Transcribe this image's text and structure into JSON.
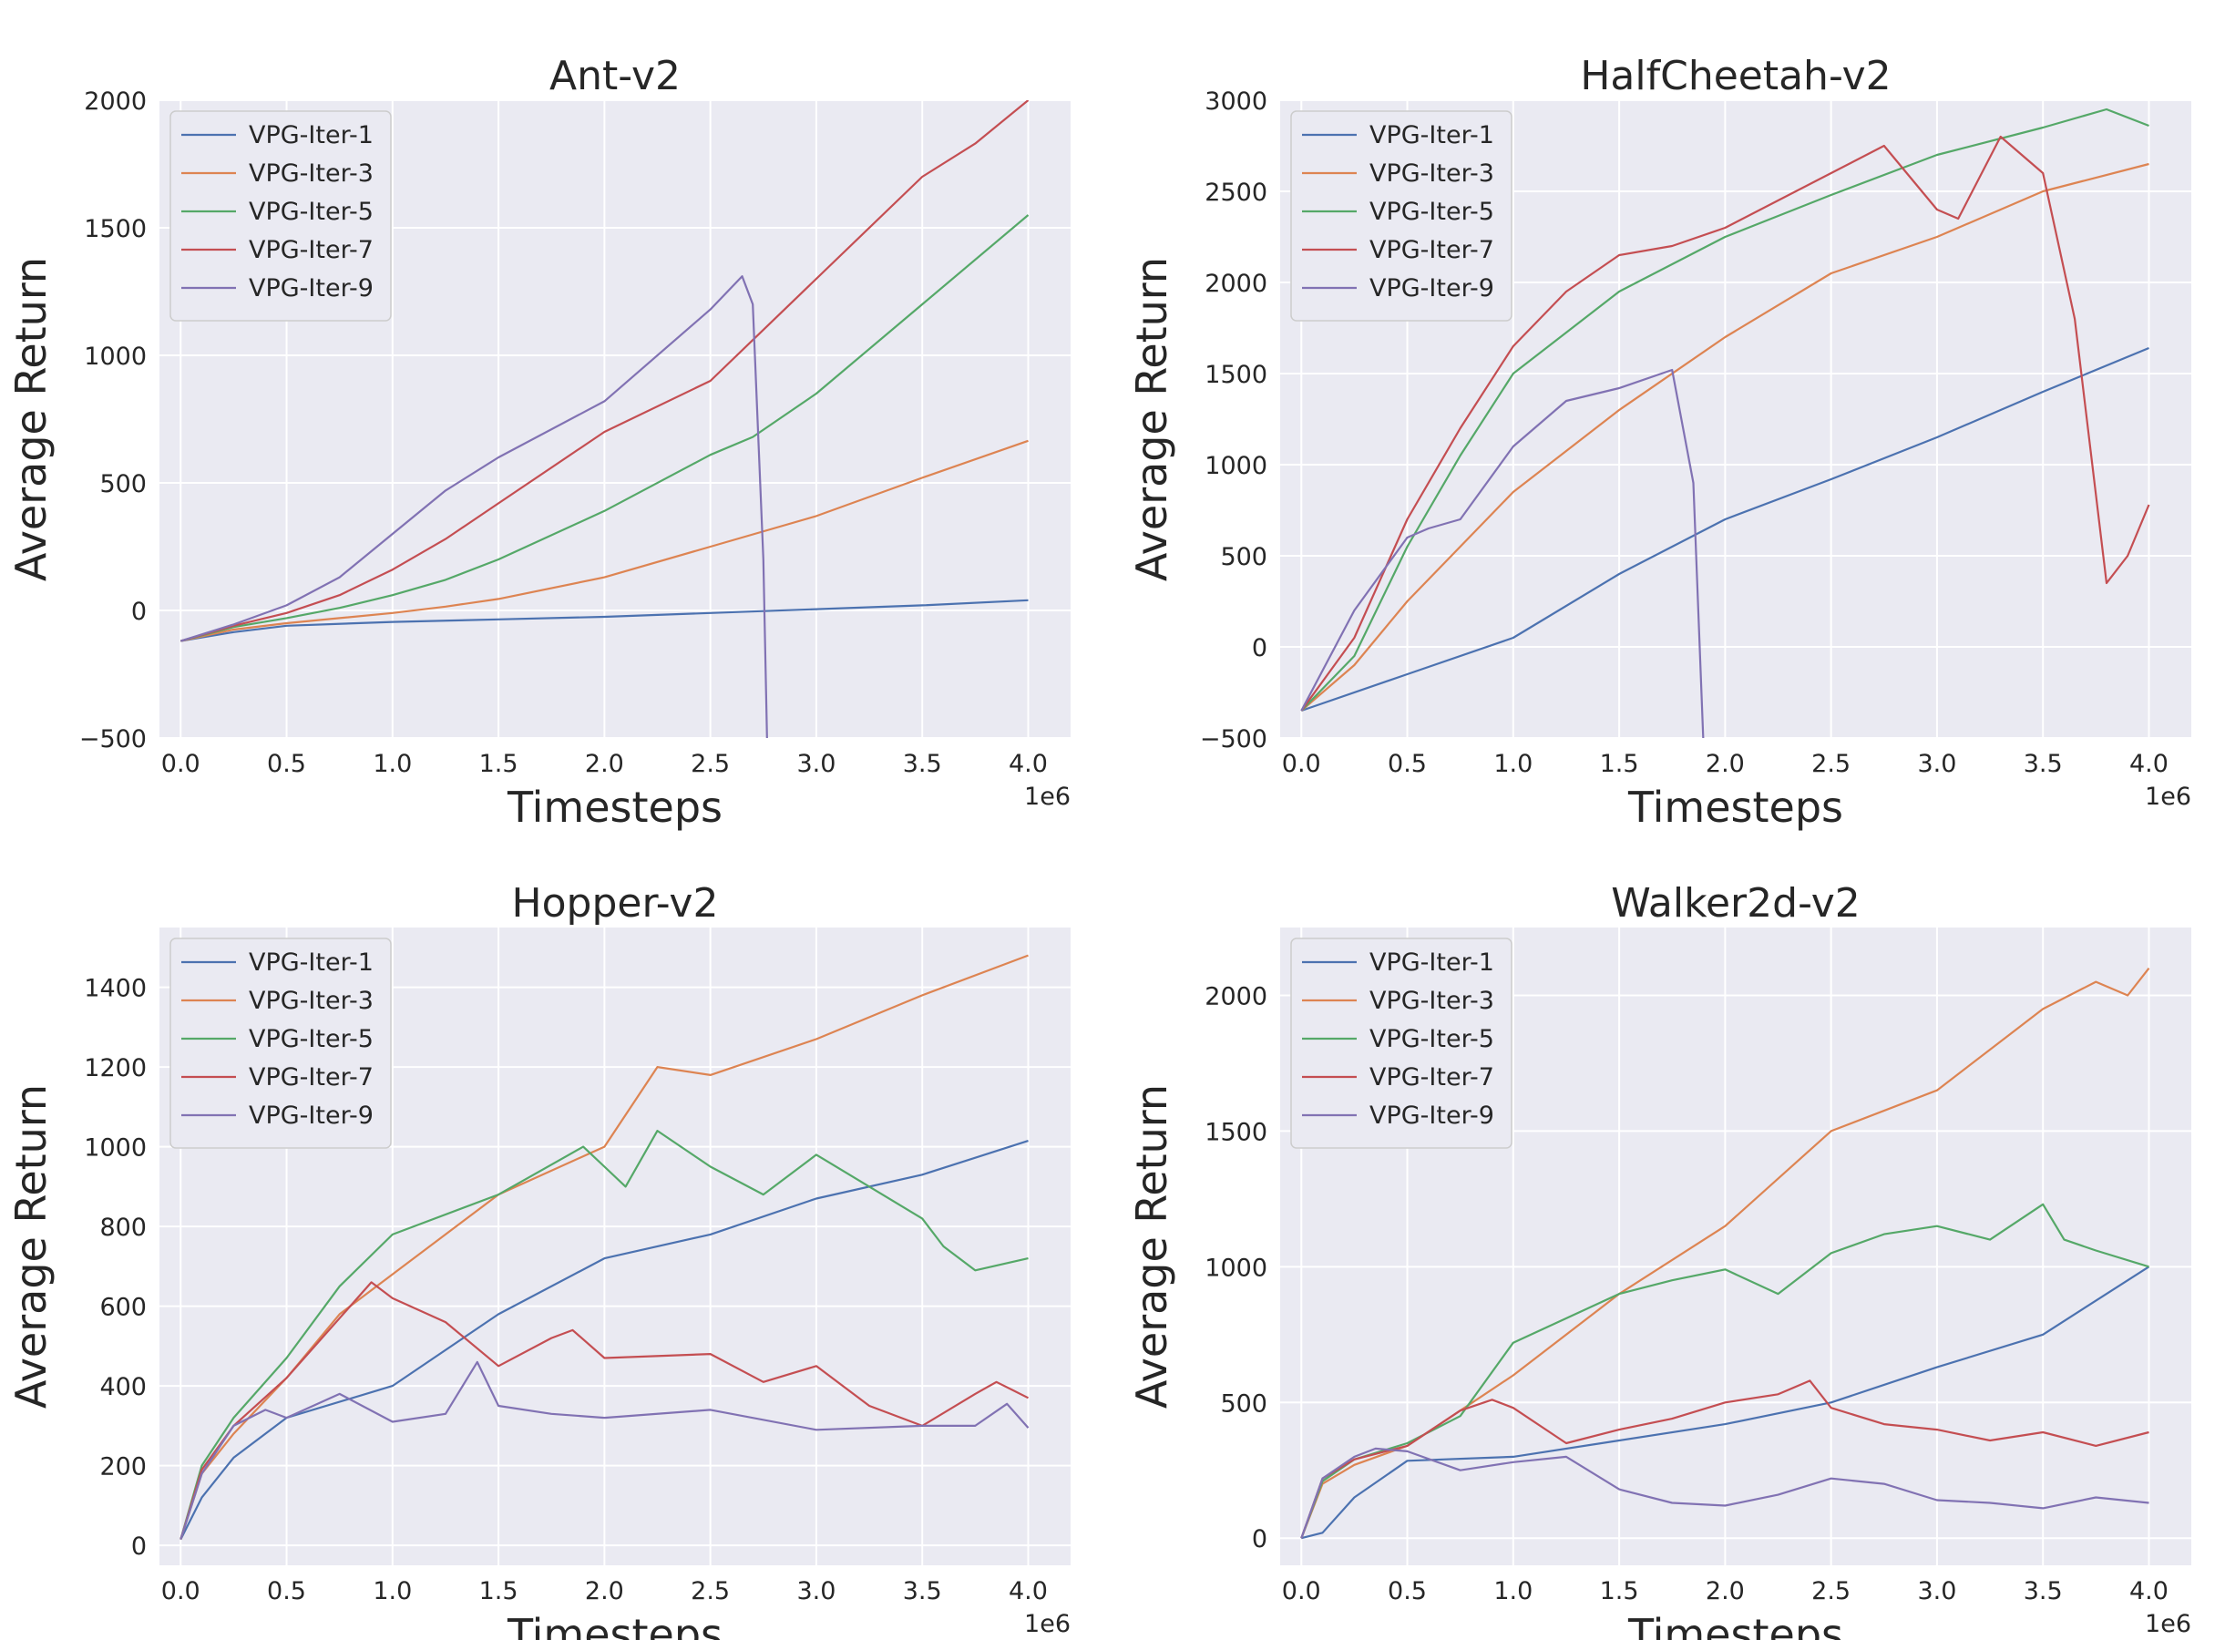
{
  "chart_data": [
    {
      "type": "line",
      "title": "Ant-v2",
      "xlabel": "Timesteps",
      "ylabel": "Average Return",
      "x_offset_label": "1e6",
      "xlim": [
        -0.1,
        4.2
      ],
      "ylim": [
        -500,
        2000
      ],
      "xticks": [
        "0.0",
        "0.5",
        "1.0",
        "1.5",
        "2.0",
        "2.5",
        "3.0",
        "3.5",
        "4.0"
      ],
      "yticks": [
        "−500",
        "0",
        "500",
        "1000",
        "1500",
        "2000"
      ],
      "legend_position": "upper-left",
      "grid": true,
      "series": [
        {
          "name": "VPG-Iter-1",
          "color": "#4c72b0",
          "x": [
            0,
            0.25,
            0.5,
            1.0,
            1.5,
            2.0,
            2.5,
            3.0,
            3.5,
            4.0
          ],
          "y": [
            -120,
            -85,
            -60,
            -45,
            -35,
            -25,
            -10,
            5,
            20,
            40
          ]
        },
        {
          "name": "VPG-Iter-3",
          "color": "#dd8452",
          "x": [
            0,
            0.25,
            0.5,
            0.75,
            1.0,
            1.25,
            1.5,
            2.0,
            2.5,
            3.0,
            3.5,
            4.0
          ],
          "y": [
            -120,
            -75,
            -50,
            -30,
            -10,
            15,
            45,
            130,
            250,
            370,
            520,
            665
          ]
        },
        {
          "name": "VPG-Iter-5",
          "color": "#55a868",
          "x": [
            0,
            0.25,
            0.5,
            0.75,
            1.0,
            1.25,
            1.5,
            2.0,
            2.5,
            2.7,
            3.0,
            3.5,
            4.0
          ],
          "y": [
            -120,
            -65,
            -30,
            10,
            60,
            120,
            200,
            390,
            610,
            680,
            850,
            1200,
            1550
          ]
        },
        {
          "name": "VPG-Iter-7",
          "color": "#c44e52",
          "x": [
            0,
            0.25,
            0.5,
            0.75,
            1.0,
            1.25,
            1.5,
            2.0,
            2.5,
            3.0,
            3.5,
            3.75,
            4.0
          ],
          "y": [
            -120,
            -60,
            -10,
            60,
            160,
            280,
            420,
            700,
            900,
            1300,
            1700,
            1830,
            2000
          ]
        },
        {
          "name": "VPG-Iter-9",
          "color": "#8172b3",
          "x": [
            0,
            0.25,
            0.5,
            0.75,
            1.0,
            1.25,
            1.5,
            2.0,
            2.5,
            2.65,
            2.7,
            2.75,
            2.77
          ],
          "y": [
            -120,
            -55,
            20,
            130,
            300,
            470,
            600,
            820,
            1180,
            1310,
            1200,
            200,
            -600
          ]
        }
      ]
    },
    {
      "type": "line",
      "title": "HalfCheetah-v2",
      "xlabel": "Timesteps",
      "ylabel": "Average Return",
      "x_offset_label": "1e6",
      "xlim": [
        -0.1,
        4.2
      ],
      "ylim": [
        -500,
        3000
      ],
      "xticks": [
        "0.0",
        "0.5",
        "1.0",
        "1.5",
        "2.0",
        "2.5",
        "3.0",
        "3.5",
        "4.0"
      ],
      "yticks": [
        "−500",
        "0",
        "500",
        "1000",
        "1500",
        "2000",
        "2500",
        "3000"
      ],
      "legend_position": "upper-left",
      "grid": true,
      "series": [
        {
          "name": "VPG-Iter-1",
          "color": "#4c72b0",
          "x": [
            0,
            0.5,
            1.0,
            1.5,
            2.0,
            2.5,
            3.0,
            3.5,
            4.0
          ],
          "y": [
            -350,
            -150,
            50,
            400,
            700,
            920,
            1150,
            1400,
            1640
          ]
        },
        {
          "name": "VPG-Iter-3",
          "color": "#dd8452",
          "x": [
            0,
            0.25,
            0.5,
            1.0,
            1.5,
            2.0,
            2.5,
            3.0,
            3.5,
            4.0
          ],
          "y": [
            -350,
            -100,
            250,
            850,
            1300,
            1700,
            2050,
            2250,
            2500,
            2650
          ]
        },
        {
          "name": "VPG-Iter-5",
          "color": "#55a868",
          "x": [
            0,
            0.25,
            0.5,
            0.75,
            1.0,
            1.5,
            2.0,
            2.5,
            3.0,
            3.5,
            3.8,
            4.0
          ],
          "y": [
            -350,
            -50,
            550,
            1050,
            1500,
            1950,
            2250,
            2480,
            2700,
            2850,
            2950,
            2860
          ]
        },
        {
          "name": "VPG-Iter-7",
          "color": "#c44e52",
          "x": [
            0,
            0.25,
            0.5,
            0.75,
            1.0,
            1.25,
            1.5,
            1.75,
            2.0,
            2.5,
            2.75,
            3.0,
            3.1,
            3.3,
            3.5,
            3.65,
            3.8,
            3.9,
            4.0
          ],
          "y": [
            -350,
            50,
            700,
            1200,
            1650,
            1950,
            2150,
            2200,
            2300,
            2600,
            2750,
            2400,
            2350,
            2800,
            2600,
            1800,
            350,
            500,
            780
          ]
        },
        {
          "name": "VPG-Iter-9",
          "color": "#8172b3",
          "x": [
            0,
            0.25,
            0.5,
            0.6,
            0.75,
            1.0,
            1.25,
            1.5,
            1.75,
            1.85,
            1.9
          ],
          "y": [
            -350,
            200,
            600,
            650,
            700,
            1100,
            1350,
            1420,
            1520,
            900,
            -600
          ]
        }
      ]
    },
    {
      "type": "line",
      "title": "Hopper-v2",
      "xlabel": "Timesteps",
      "ylabel": "Average Return",
      "x_offset_label": "1e6",
      "xlim": [
        -0.1,
        4.2
      ],
      "ylim": [
        -50,
        1550
      ],
      "xticks": [
        "0.0",
        "0.5",
        "1.0",
        "1.5",
        "2.0",
        "2.5",
        "3.0",
        "3.5",
        "4.0"
      ],
      "yticks": [
        "0",
        "200",
        "400",
        "600",
        "800",
        "1000",
        "1200",
        "1400"
      ],
      "legend_position": "upper-left",
      "grid": true,
      "series": [
        {
          "name": "VPG-Iter-1",
          "color": "#4c72b0",
          "x": [
            0,
            0.1,
            0.25,
            0.5,
            1.0,
            1.5,
            2.0,
            2.5,
            3.0,
            3.5,
            4.0
          ],
          "y": [
            15,
            120,
            220,
            320,
            400,
            580,
            720,
            780,
            870,
            930,
            1015
          ]
        },
        {
          "name": "VPG-Iter-3",
          "color": "#dd8452",
          "x": [
            0,
            0.1,
            0.25,
            0.5,
            0.75,
            1.0,
            1.5,
            2.0,
            2.25,
            2.5,
            3.0,
            3.5,
            4.0
          ],
          "y": [
            15,
            180,
            280,
            420,
            580,
            680,
            880,
            1000,
            1200,
            1180,
            1270,
            1380,
            1480
          ]
        },
        {
          "name": "VPG-Iter-5",
          "color": "#55a868",
          "x": [
            0,
            0.1,
            0.25,
            0.5,
            0.75,
            1.0,
            1.5,
            1.9,
            2.0,
            2.1,
            2.25,
            2.5,
            2.75,
            3.0,
            3.25,
            3.5,
            3.6,
            3.75,
            4.0
          ],
          "y": [
            15,
            200,
            320,
            470,
            650,
            780,
            880,
            1000,
            950,
            900,
            1040,
            950,
            880,
            980,
            900,
            820,
            750,
            690,
            720
          ]
        },
        {
          "name": "VPG-Iter-7",
          "color": "#c44e52",
          "x": [
            0,
            0.1,
            0.25,
            0.5,
            0.75,
            0.9,
            1.0,
            1.25,
            1.5,
            1.75,
            1.85,
            2.0,
            2.5,
            2.75,
            3.0,
            3.25,
            3.5,
            3.75,
            3.85,
            4.0
          ],
          "y": [
            15,
            190,
            300,
            420,
            570,
            660,
            620,
            560,
            450,
            520,
            540,
            470,
            480,
            410,
            450,
            350,
            300,
            380,
            410,
            370
          ]
        },
        {
          "name": "VPG-Iter-9",
          "color": "#8172b3",
          "x": [
            0,
            0.1,
            0.25,
            0.4,
            0.5,
            0.75,
            1.0,
            1.25,
            1.4,
            1.5,
            1.75,
            2.0,
            2.5,
            3.0,
            3.5,
            3.75,
            3.9,
            4.0
          ],
          "y": [
            15,
            180,
            300,
            340,
            320,
            380,
            310,
            330,
            460,
            350,
            330,
            320,
            340,
            290,
            300,
            300,
            355,
            295
          ]
        }
      ]
    },
    {
      "type": "line",
      "title": "Walker2d-v2",
      "xlabel": "Timesteps",
      "ylabel": "Average Return",
      "x_offset_label": "1e6",
      "xlim": [
        -0.1,
        4.2
      ],
      "ylim": [
        -100,
        2250
      ],
      "xticks": [
        "0.0",
        "0.5",
        "1.0",
        "1.5",
        "2.0",
        "2.5",
        "3.0",
        "3.5",
        "4.0"
      ],
      "yticks": [
        "0",
        "500",
        "1000",
        "1500",
        "2000"
      ],
      "legend_position": "upper-left",
      "grid": true,
      "series": [
        {
          "name": "VPG-Iter-1",
          "color": "#4c72b0",
          "x": [
            0,
            0.1,
            0.25,
            0.5,
            1.0,
            1.5,
            2.0,
            2.5,
            3.0,
            3.5,
            4.0
          ],
          "y": [
            0,
            20,
            150,
            285,
            300,
            360,
            420,
            500,
            630,
            750,
            1000
          ]
        },
        {
          "name": "VPG-Iter-3",
          "color": "#dd8452",
          "x": [
            0,
            0.1,
            0.25,
            0.5,
            1.0,
            1.5,
            2.0,
            2.5,
            3.0,
            3.5,
            3.75,
            3.9,
            4.0
          ],
          "y": [
            0,
            200,
            270,
            340,
            600,
            900,
            1150,
            1500,
            1650,
            1950,
            2050,
            2000,
            2100
          ]
        },
        {
          "name": "VPG-Iter-5",
          "color": "#55a868",
          "x": [
            0,
            0.1,
            0.25,
            0.5,
            0.75,
            1.0,
            1.5,
            1.75,
            2.0,
            2.25,
            2.5,
            2.75,
            3.0,
            3.25,
            3.5,
            3.6,
            3.75,
            4.0
          ],
          "y": [
            0,
            210,
            290,
            350,
            450,
            720,
            900,
            950,
            990,
            900,
            1050,
            1120,
            1150,
            1100,
            1230,
            1100,
            1060,
            1000
          ]
        },
        {
          "name": "VPG-Iter-7",
          "color": "#c44e52",
          "x": [
            0,
            0.1,
            0.25,
            0.5,
            0.75,
            0.9,
            1.0,
            1.25,
            1.5,
            1.75,
            2.0,
            2.25,
            2.4,
            2.5,
            2.75,
            3.0,
            3.25,
            3.5,
            3.75,
            4.0
          ],
          "y": [
            0,
            220,
            290,
            340,
            470,
            510,
            480,
            350,
            400,
            440,
            500,
            530,
            580,
            480,
            420,
            400,
            360,
            390,
            340,
            390
          ]
        },
        {
          "name": "VPG-Iter-9",
          "color": "#8172b3",
          "x": [
            0,
            0.1,
            0.25,
            0.35,
            0.5,
            0.75,
            1.0,
            1.25,
            1.5,
            1.75,
            2.0,
            2.25,
            2.5,
            2.75,
            3.0,
            3.25,
            3.5,
            3.75,
            4.0
          ],
          "y": [
            0,
            220,
            300,
            330,
            320,
            250,
            280,
            300,
            180,
            130,
            120,
            160,
            220,
            200,
            140,
            130,
            110,
            150,
            130
          ]
        }
      ]
    }
  ]
}
